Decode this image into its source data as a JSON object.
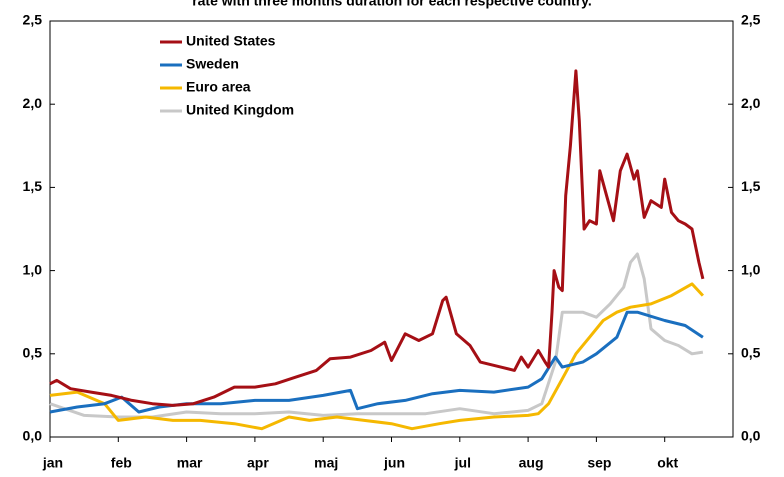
{
  "chart_data": {
    "type": "line",
    "title": "rate with three months duration for each respective country.",
    "xlim": [
      0,
      10
    ],
    "xticks": [
      {
        "value": 0,
        "label": "jan"
      },
      {
        "value": 1,
        "label": "feb"
      },
      {
        "value": 2,
        "label": "mar"
      },
      {
        "value": 3,
        "label": "apr"
      },
      {
        "value": 4,
        "label": "maj"
      },
      {
        "value": 5,
        "label": "jun"
      },
      {
        "value": 6,
        "label": "jul"
      },
      {
        "value": 7,
        "label": "aug"
      },
      {
        "value": 8,
        "label": "sep"
      },
      {
        "value": 9,
        "label": "okt"
      }
    ],
    "ylim": [
      0,
      2.5
    ],
    "yticks": [
      {
        "value": 0,
        "label": "0,0"
      },
      {
        "value": 0.5,
        "label": "0,5"
      },
      {
        "value": 1,
        "label": "1,0"
      },
      {
        "value": 1.5,
        "label": "1,5"
      },
      {
        "value": 2,
        "label": "2,0"
      },
      {
        "value": 2.5,
        "label": "2,5"
      }
    ],
    "y2lim": [
      0,
      2.5
    ],
    "y2ticks": [
      {
        "value": 0,
        "label": "0,0"
      },
      {
        "value": 0.5,
        "label": "0,5"
      },
      {
        "value": 1,
        "label": "1,0"
      },
      {
        "value": 1.5,
        "label": "1,5"
      },
      {
        "value": 2,
        "label": "2,0"
      },
      {
        "value": 2.5,
        "label": "2,5"
      }
    ],
    "grid": false,
    "legend": "upper-left",
    "series": [
      {
        "name": "United States",
        "color": "#a50f15",
        "x": [
          0,
          0.1,
          0.3,
          0.6,
          0.9,
          1.2,
          1.5,
          1.8,
          2.1,
          2.4,
          2.7,
          3.0,
          3.3,
          3.6,
          3.9,
          4.1,
          4.4,
          4.7,
          4.9,
          5.0,
          5.2,
          5.4,
          5.6,
          5.75,
          5.8,
          5.95,
          6.15,
          6.3,
          6.6,
          6.8,
          6.9,
          7.0,
          7.15,
          7.25,
          7.3,
          7.35,
          7.38,
          7.45,
          7.5,
          7.55,
          7.62,
          7.7,
          7.75,
          7.82,
          7.9,
          8.0,
          8.05,
          8.15,
          8.25,
          8.35,
          8.45,
          8.55,
          8.6,
          8.7,
          8.8,
          8.95,
          9.0,
          9.1,
          9.2,
          9.3,
          9.4,
          9.5,
          9.56
        ],
        "values": [
          0.32,
          0.34,
          0.29,
          0.27,
          0.25,
          0.22,
          0.2,
          0.19,
          0.2,
          0.24,
          0.3,
          0.3,
          0.32,
          0.36,
          0.4,
          0.47,
          0.48,
          0.52,
          0.57,
          0.46,
          0.62,
          0.58,
          0.62,
          0.82,
          0.84,
          0.62,
          0.55,
          0.45,
          0.42,
          0.4,
          0.48,
          0.42,
          0.52,
          0.45,
          0.42,
          0.75,
          1.0,
          0.9,
          0.88,
          1.45,
          1.75,
          2.2,
          1.9,
          1.25,
          1.3,
          1.28,
          1.6,
          1.45,
          1.3,
          1.6,
          1.7,
          1.55,
          1.6,
          1.32,
          1.42,
          1.38,
          1.55,
          1.35,
          1.3,
          1.28,
          1.25,
          1.05,
          0.95
        ]
      },
      {
        "name": "Sweden",
        "color": "#1a6fbf",
        "x": [
          0,
          0.4,
          0.8,
          1.05,
          1.3,
          1.6,
          2.0,
          2.5,
          3.0,
          3.5,
          4.0,
          4.4,
          4.5,
          4.8,
          5.2,
          5.6,
          6.0,
          6.5,
          7.0,
          7.2,
          7.4,
          7.5,
          7.8,
          8.0,
          8.3,
          8.45,
          8.6,
          9.0,
          9.3,
          9.56
        ],
        "values": [
          0.15,
          0.18,
          0.2,
          0.24,
          0.15,
          0.18,
          0.2,
          0.2,
          0.22,
          0.22,
          0.25,
          0.28,
          0.17,
          0.2,
          0.22,
          0.26,
          0.28,
          0.27,
          0.3,
          0.35,
          0.48,
          0.42,
          0.45,
          0.5,
          0.6,
          0.75,
          0.75,
          0.7,
          0.67,
          0.6
        ]
      },
      {
        "name": "Euro area",
        "color": "#f5b800",
        "x": [
          0,
          0.4,
          0.8,
          1.0,
          1.4,
          1.8,
          2.2,
          2.7,
          3.1,
          3.5,
          3.8,
          4.2,
          4.6,
          5.0,
          5.3,
          5.7,
          6.0,
          6.5,
          7.0,
          7.15,
          7.3,
          7.5,
          7.7,
          7.9,
          8.1,
          8.3,
          8.5,
          8.8,
          9.1,
          9.4,
          9.56
        ],
        "values": [
          0.25,
          0.27,
          0.2,
          0.1,
          0.12,
          0.1,
          0.1,
          0.08,
          0.05,
          0.12,
          0.1,
          0.12,
          0.1,
          0.08,
          0.05,
          0.08,
          0.1,
          0.12,
          0.13,
          0.14,
          0.2,
          0.35,
          0.5,
          0.6,
          0.7,
          0.75,
          0.78,
          0.8,
          0.85,
          0.92,
          0.85
        ]
      },
      {
        "name": "United Kingdom",
        "color": "#c8c8c8",
        "x": [
          0,
          0.5,
          1.0,
          1.5,
          2.0,
          2.5,
          3.0,
          3.5,
          4.0,
          4.5,
          5.0,
          5.5,
          6.0,
          6.5,
          7.0,
          7.2,
          7.4,
          7.5,
          7.8,
          8.0,
          8.2,
          8.4,
          8.5,
          8.6,
          8.7,
          8.8,
          9.0,
          9.2,
          9.4,
          9.56
        ],
        "values": [
          0.2,
          0.13,
          0.12,
          0.12,
          0.15,
          0.14,
          0.14,
          0.15,
          0.13,
          0.14,
          0.14,
          0.14,
          0.17,
          0.14,
          0.16,
          0.2,
          0.45,
          0.75,
          0.75,
          0.72,
          0.8,
          0.9,
          1.05,
          1.1,
          0.95,
          0.65,
          0.58,
          0.55,
          0.5,
          0.51
        ]
      }
    ]
  }
}
